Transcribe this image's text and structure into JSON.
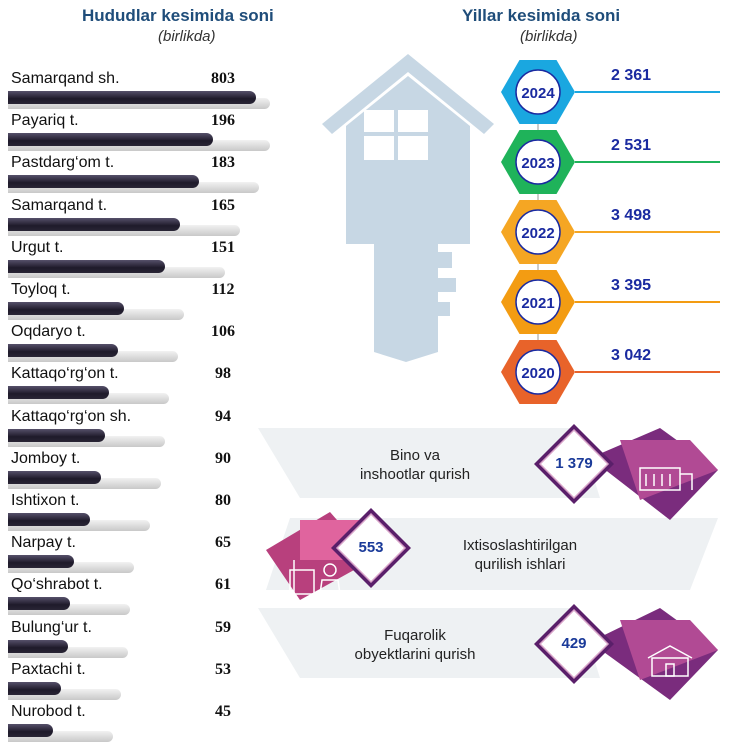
{
  "left_title": "Hududlar kesimida soni",
  "left_subtitle": "(birlikda)",
  "right_title": "Yillar kesimida soni",
  "right_subtitle": "(birlikda)",
  "colors": {
    "title": "#1f4d7a",
    "bar": "#2a2636",
    "year_value": "#1a2aa0",
    "y2024": "#1aa7e0",
    "y2023": "#1fb35a",
    "y2022": "#f5a623",
    "y2021": "#f39c12",
    "y2020": "#e8632a",
    "category_accent": "#8b2d8a"
  },
  "chart_data": [
    {
      "type": "bar",
      "title": "Hududlar kesimida soni",
      "subtitle": "(birlikda)",
      "orientation": "horizontal",
      "categories": [
        "Samarqand sh.",
        "Payariq t.",
        "Pastdarg‘om t.",
        "Samarqand t.",
        "Urgut t.",
        "Toyloq t.",
        "Oqdaryo t.",
        "Kattaqo‘rg‘on t.",
        "Kattaqo‘rg‘on sh.",
        "Jomboy t.",
        "Ishtixon t.",
        "Narpay t.",
        "Qo‘shrabot t.",
        "Bulung‘ur t.",
        "Paxtachi t.",
        "Nurobod t."
      ],
      "values": [
        803,
        196,
        183,
        165,
        151,
        112,
        106,
        98,
        94,
        90,
        80,
        65,
        61,
        59,
        53,
        45
      ]
    },
    {
      "type": "table",
      "title": "Yillar kesimida soni",
      "subtitle": "(birlikda)",
      "categories": [
        "2024",
        "2023",
        "2022",
        "2021",
        "2020"
      ],
      "values": [
        2361,
        2531,
        3498,
        3395,
        3042
      ],
      "labels": [
        "2 361",
        "2 531",
        "3 498",
        "3 395",
        "3 042"
      ]
    },
    {
      "type": "table",
      "categories": [
        "Bino va inshootlar qurish",
        "Ixtisoslashtirilgan qurilish ishlari",
        "Fuqarolik obyektlarini qurish"
      ],
      "values": [
        1379,
        553,
        429
      ],
      "labels": [
        "1 379",
        "553",
        "429"
      ]
    }
  ],
  "categories": [
    {
      "line1": "Bino va",
      "line2": "inshootlar qurish",
      "value": "1 379",
      "icon": "building-icon"
    },
    {
      "line1": "Ixtisoslashtirilgan",
      "line2": "qurilish ishlari",
      "value": "553",
      "icon": "construction-worker-icon"
    },
    {
      "line1": "Fuqarolik",
      "line2": "obyektlarini qurish",
      "value": "429",
      "icon": "house-icon"
    }
  ]
}
